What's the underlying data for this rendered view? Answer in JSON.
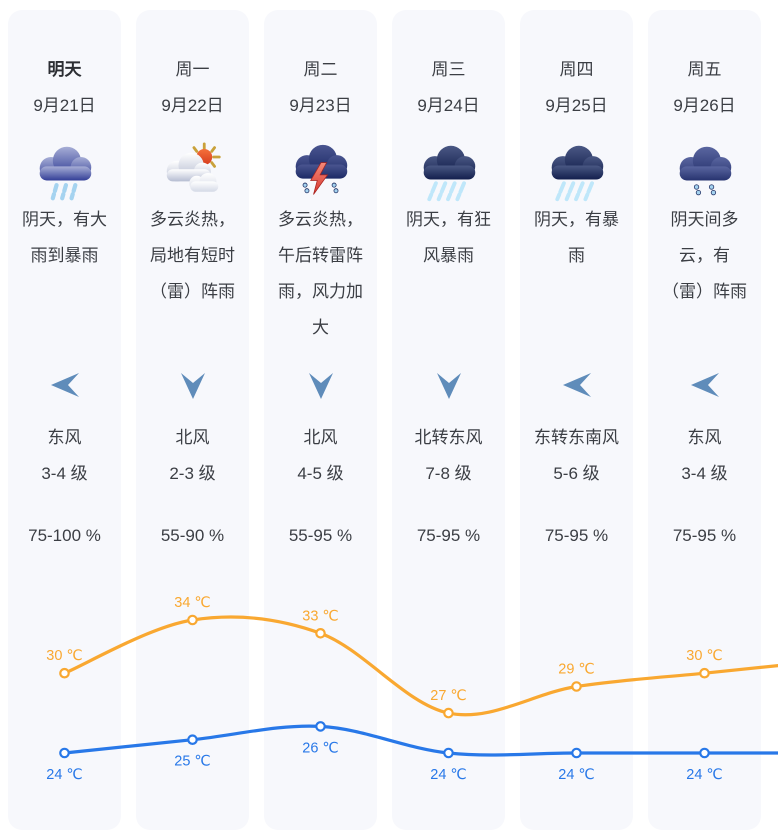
{
  "days": [
    {
      "day": "明天",
      "emphasized": true,
      "date": "9月21日",
      "icon": "heavy-rain",
      "description": "阴天，有大雨到暴雨",
      "wind_arrow": "left",
      "wind_direction": "东风",
      "wind_level": "3-4 级",
      "humidity": "75-100 %"
    },
    {
      "day": "周一",
      "emphasized": false,
      "date": "9月22日",
      "icon": "partly-cloudy-hot",
      "description": "多云炎热，局地有短时（雷）阵雨",
      "wind_arrow": "down",
      "wind_direction": "北风",
      "wind_level": "2-3 级",
      "humidity": "55-90 %"
    },
    {
      "day": "周二",
      "emphasized": false,
      "date": "9月23日",
      "icon": "thunder-shower",
      "description": "多云炎热，午后转雷阵雨，风力加大",
      "wind_arrow": "down",
      "wind_direction": "北风",
      "wind_level": "4-5 级",
      "humidity": "55-95 %"
    },
    {
      "day": "周三",
      "emphasized": false,
      "date": "9月24日",
      "icon": "rainstorm",
      "description": "阴天，有狂风暴雨",
      "wind_arrow": "down",
      "wind_direction": "北转东风",
      "wind_level": "7-8 级",
      "humidity": "75-95 %"
    },
    {
      "day": "周四",
      "emphasized": false,
      "date": "9月25日",
      "icon": "rainstorm",
      "description": "阴天，有暴雨",
      "wind_arrow": "left",
      "wind_direction": "东转东南风",
      "wind_level": "5-6 级",
      "humidity": "75-95 %"
    },
    {
      "day": "周五",
      "emphasized": false,
      "date": "9月26日",
      "icon": "shower",
      "description": "阴天间多云，有（雷）阵雨",
      "wind_arrow": "left",
      "wind_direction": "东风",
      "wind_level": "3-4 级",
      "humidity": "75-95 %"
    }
  ],
  "chart_data": {
    "type": "line",
    "categories": [
      "明天 9月21日",
      "周一 9月22日",
      "周二 9月23日",
      "周三 9月24日",
      "周四 9月25日",
      "周五 9月26日"
    ],
    "series": [
      {
        "name": "high",
        "values": [
          30,
          34,
          33,
          27,
          29,
          30
        ],
        "color": "#F9A831"
      },
      {
        "name": "low",
        "values": [
          24,
          25,
          26,
          24,
          24,
          24
        ],
        "color": "#2878E8"
      }
    ],
    "unit": "℃",
    "label_format": "{v} ℃",
    "grid": false,
    "legend": false,
    "ylim": [
      22,
      36
    ]
  },
  "colors": {
    "high_line": "#F9A831",
    "low_line": "#2878E8",
    "card_bg": "#F7F8FC",
    "text": "#3B3E44",
    "wind_arrow": "#4E80B2"
  }
}
